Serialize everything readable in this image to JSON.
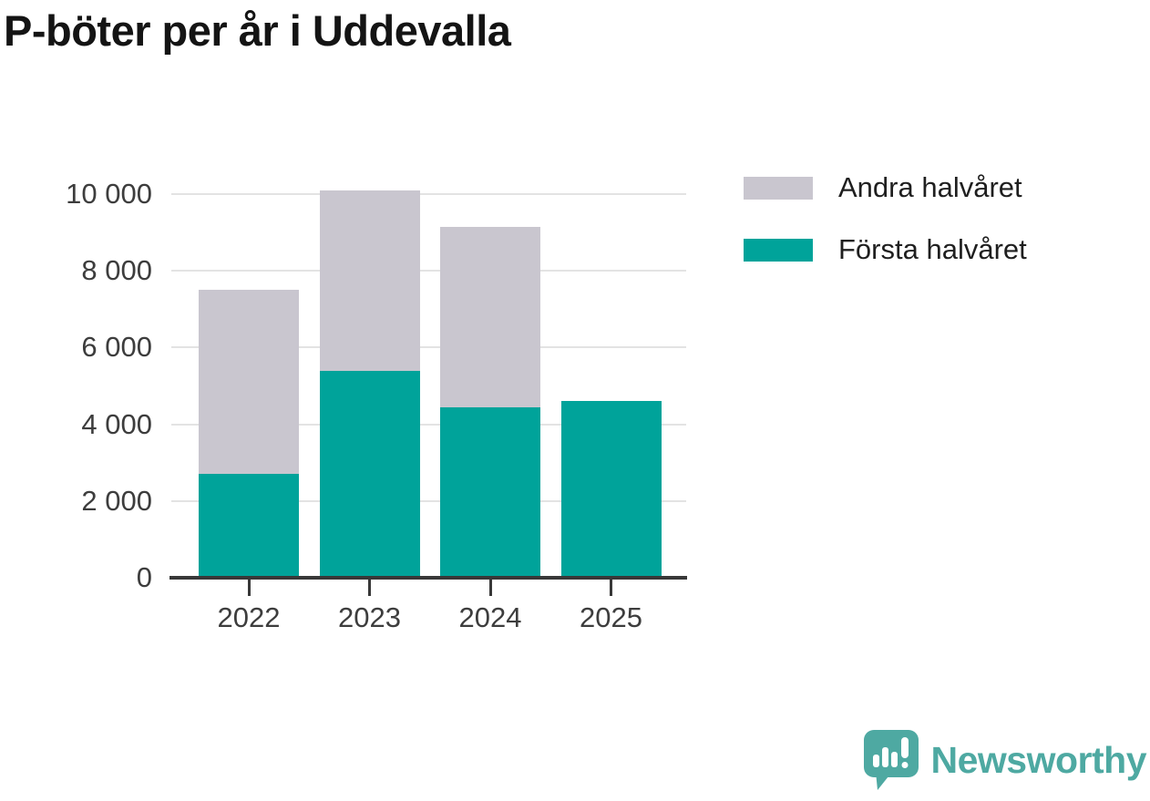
{
  "page": {
    "title": "P-böter per år i Uddevalla"
  },
  "chart_data": {
    "type": "bar",
    "stacked": true,
    "title": "P-böter per år i Uddevalla",
    "categories": [
      "2022",
      "2023",
      "2024",
      "2025"
    ],
    "series": [
      {
        "name": "Första halvåret",
        "color": "#00a39a",
        "values": [
          2700,
          5400,
          4450,
          4600
        ]
      },
      {
        "name": "Andra halvåret",
        "color": "#c9c6cf",
        "values": [
          4800,
          4700,
          4700,
          0
        ]
      }
    ],
    "stack_totals": [
      7500,
      10100,
      9150,
      4600
    ],
    "xlabel": "",
    "ylabel": "",
    "ylim": [
      0,
      10400
    ],
    "yticks": {
      "values": [
        0,
        2000,
        4000,
        6000,
        8000,
        10000
      ],
      "labels": [
        "0",
        "2 000",
        "4 000",
        "6 000",
        "8 000",
        "10 000"
      ]
    },
    "grid": "horizontal",
    "legend_position": "top-right"
  },
  "legend": {
    "items": [
      {
        "label": "Andra halvåret",
        "color": "#c9c6cf"
      },
      {
        "label": "Första halvåret",
        "color": "#00a39a"
      }
    ]
  },
  "footer": {
    "brand": "Newsworthy",
    "brand_color": "#4ea9a2"
  },
  "colors": {
    "background": "#ffffff",
    "title_text": "#141414",
    "axis": "#383838",
    "tick_label": "#3d3d3d",
    "gridline": "#e3e3e3",
    "bar_first_half": "#00a39a",
    "bar_second_half": "#c9c6cf",
    "brand_teal": "#4ea9a2"
  }
}
